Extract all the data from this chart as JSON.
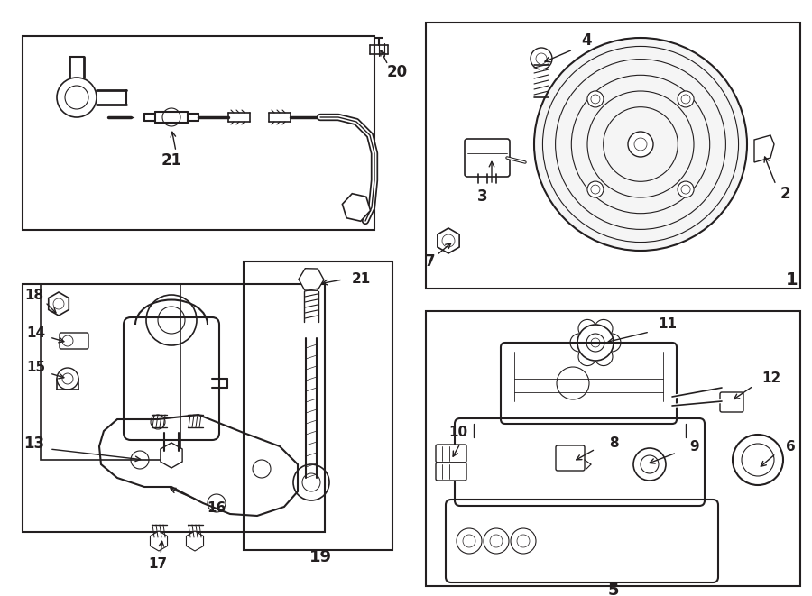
{
  "bg_color": "#ffffff",
  "line_color": "#231f20",
  "fig_width": 9.0,
  "fig_height": 6.61,
  "dpi": 100,
  "title_color": "#231f20"
}
